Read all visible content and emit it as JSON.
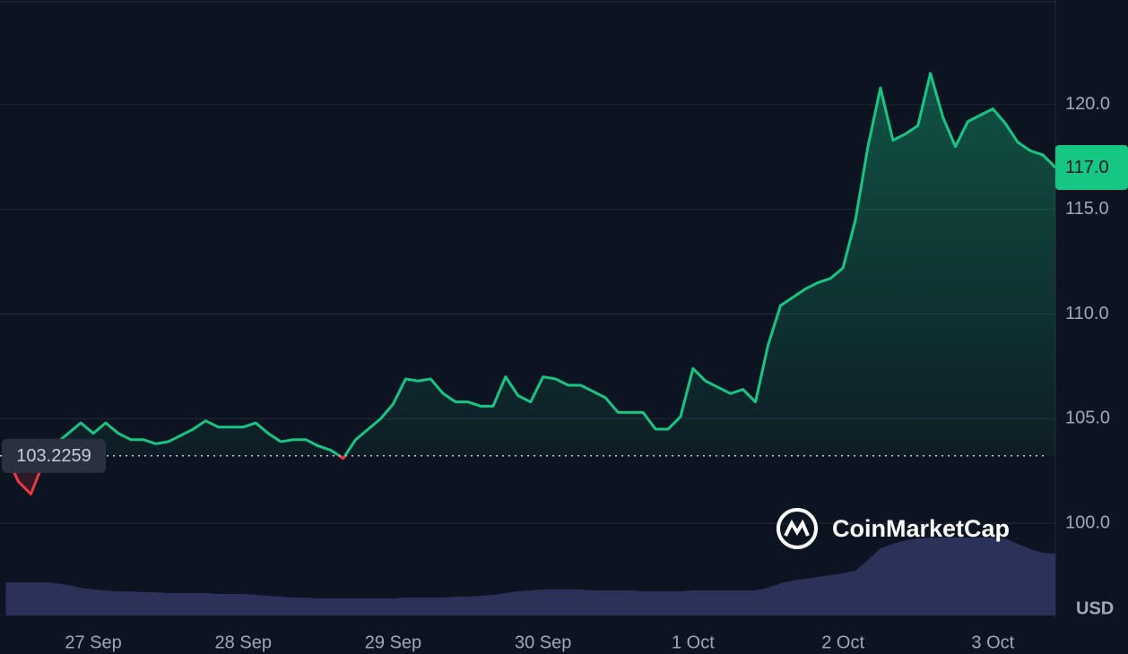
{
  "chart_data": {
    "type": "line",
    "categories": [
      null,
      null,
      null,
      null,
      null,
      null,
      null,
      "27 Sep",
      null,
      null,
      null,
      null,
      null,
      null,
      null,
      null,
      null,
      null,
      null,
      "28 Sep",
      null,
      null,
      null,
      null,
      null,
      null,
      null,
      null,
      null,
      null,
      null,
      "29 Sep",
      null,
      null,
      null,
      null,
      null,
      null,
      null,
      null,
      null,
      null,
      null,
      "30 Sep",
      null,
      null,
      null,
      null,
      null,
      null,
      null,
      null,
      null,
      null,
      null,
      "1 Oct",
      null,
      null,
      null,
      null,
      null,
      null,
      null,
      null,
      null,
      null,
      null,
      "2 Oct",
      null,
      null,
      null,
      null,
      null,
      null,
      null,
      null,
      null,
      null,
      null,
      "3 Oct",
      null,
      null,
      null,
      null,
      null
    ],
    "values": [
      103.3,
      102.0,
      101.4,
      102.9,
      103.8,
      104.3,
      104.8,
      104.3,
      104.8,
      104.3,
      104.0,
      104.0,
      103.8,
      103.9,
      104.2,
      104.5,
      104.9,
      104.6,
      104.6,
      104.6,
      104.8,
      104.3,
      103.9,
      104.0,
      104.0,
      103.7,
      103.5,
      103.1,
      104.0,
      104.5,
      105.0,
      105.7,
      106.9,
      106.8,
      106.9,
      106.2,
      105.8,
      105.8,
      105.6,
      105.6,
      107.0,
      106.1,
      105.8,
      107.0,
      106.9,
      106.6,
      106.6,
      106.3,
      106.0,
      105.3,
      105.3,
      105.3,
      104.5,
      104.5,
      105.1,
      107.4,
      106.8,
      106.5,
      106.2,
      106.4,
      105.8,
      108.5,
      110.4,
      110.8,
      111.2,
      111.5,
      111.7,
      112.2,
      114.5,
      118.0,
      120.8,
      118.3,
      118.6,
      119.0,
      121.5,
      119.4,
      118.0,
      119.2,
      119.5,
      119.8,
      119.1,
      118.2,
      117.8,
      117.6,
      117.0
    ],
    "volume": [
      37,
      37,
      37,
      37,
      36,
      34,
      31,
      29,
      28,
      27,
      27,
      26,
      26,
      25,
      25,
      25,
      25,
      24,
      24,
      24,
      23,
      22,
      21,
      20,
      20,
      19,
      19,
      19,
      19,
      19,
      19,
      19,
      20,
      20,
      20,
      20,
      21,
      21,
      22,
      23,
      25,
      27,
      28,
      29,
      29,
      29,
      29,
      28,
      28,
      28,
      28,
      27,
      27,
      27,
      27,
      28,
      28,
      28,
      28,
      28,
      28,
      31,
      36,
      39,
      41,
      43,
      45,
      47,
      50,
      62,
      75,
      80,
      84,
      86,
      87,
      87,
      87,
      87,
      87,
      87,
      86,
      80,
      74,
      70,
      69
    ],
    "up_color": "#16c784",
    "down_color": "#ea3943",
    "volume_color": "#2b3159",
    "ylim": [
      95.6,
      125.0
    ],
    "yticks": [
      {
        "value": 100,
        "label": "100.0"
      },
      {
        "value": 105,
        "label": "105.0"
      },
      {
        "value": 110,
        "label": "110.0"
      },
      {
        "value": 115,
        "label": "115.0"
      },
      {
        "value": 120,
        "label": "120.0"
      }
    ],
    "baseline": 103.2259,
    "current_price": {
      "value": 117,
      "label": "117.0"
    },
    "currency": "USD",
    "watermark": "CoinMarketCap",
    "grid": true
  }
}
